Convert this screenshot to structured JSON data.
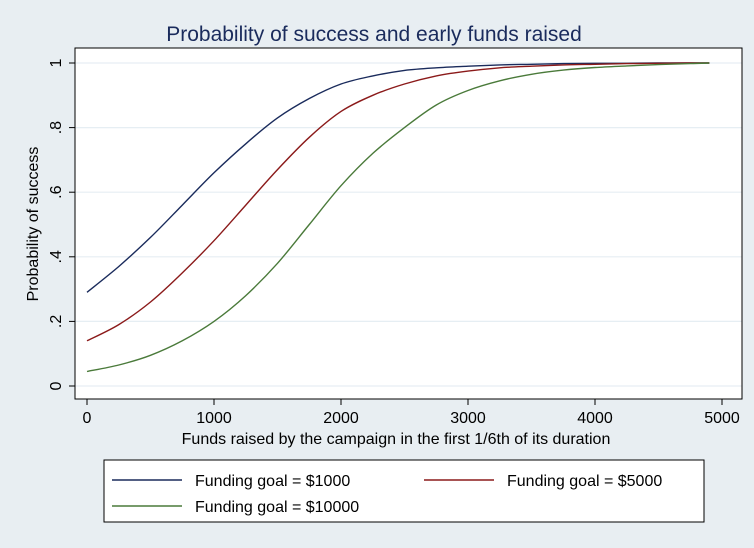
{
  "chart_data": {
    "type": "line",
    "title": "Probability of success and early funds  raised",
    "xlabel": "Funds raised by the campaign in the first 1/6th of its duration",
    "ylabel": "Probability of success",
    "xlim": [
      0,
      5000
    ],
    "ylim": [
      0,
      1
    ],
    "x_ticks": [
      0,
      1000,
      2000,
      3000,
      4000,
      5000
    ],
    "x_tick_labels": [
      "0",
      "1000",
      "2000",
      "3000",
      "4000",
      "5000"
    ],
    "y_ticks": [
      0,
      0.2,
      0.4,
      0.6,
      0.8,
      1
    ],
    "y_tick_labels": [
      "0",
      ".2",
      ".4",
      ".6",
      ".8",
      "1"
    ],
    "grid": true,
    "legend_position": "bottom",
    "x": [
      0,
      250,
      500,
      750,
      1000,
      1250,
      1500,
      1750,
      2000,
      2250,
      2500,
      2750,
      3000,
      3250,
      3500,
      3750,
      4000,
      4250,
      4500,
      4750,
      4900
    ],
    "series": [
      {
        "name": "Funding goal = $1000",
        "color": "#1a2b5c",
        "values": [
          0.29,
          0.37,
          0.46,
          0.56,
          0.66,
          0.75,
          0.83,
          0.89,
          0.935,
          0.96,
          0.977,
          0.985,
          0.99,
          0.994,
          0.996,
          0.998,
          0.999,
          0.999,
          1.0,
          1.0,
          1.0
        ]
      },
      {
        "name": "Funding goal = $5000",
        "color": "#8b1a1a",
        "values": [
          0.14,
          0.19,
          0.26,
          0.35,
          0.45,
          0.56,
          0.67,
          0.77,
          0.85,
          0.9,
          0.935,
          0.96,
          0.975,
          0.985,
          0.99,
          0.994,
          0.996,
          0.998,
          0.999,
          1.0,
          1.0
        ]
      },
      {
        "name": "Funding goal = $10000",
        "color": "#4a7a3a",
        "values": [
          0.045,
          0.065,
          0.095,
          0.14,
          0.2,
          0.28,
          0.38,
          0.5,
          0.62,
          0.72,
          0.8,
          0.87,
          0.915,
          0.945,
          0.965,
          0.978,
          0.986,
          0.991,
          0.995,
          0.998,
          1.0
        ]
      }
    ]
  }
}
